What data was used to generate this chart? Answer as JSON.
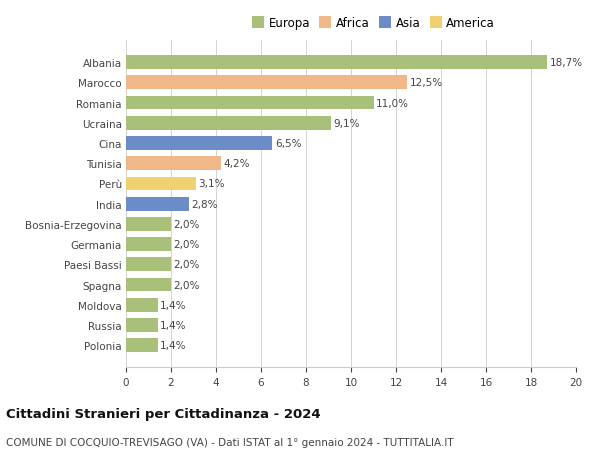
{
  "countries": [
    "Albania",
    "Marocco",
    "Romania",
    "Ucraina",
    "Cina",
    "Tunisia",
    "Perù",
    "India",
    "Bosnia-Erzegovina",
    "Germania",
    "Paesi Bassi",
    "Spagna",
    "Moldova",
    "Russia",
    "Polonia"
  ],
  "values": [
    18.7,
    12.5,
    11.0,
    9.1,
    6.5,
    4.2,
    3.1,
    2.8,
    2.0,
    2.0,
    2.0,
    2.0,
    1.4,
    1.4,
    1.4
  ],
  "labels": [
    "18,7%",
    "12,5%",
    "11,0%",
    "9,1%",
    "6,5%",
    "4,2%",
    "3,1%",
    "2,8%",
    "2,0%",
    "2,0%",
    "2,0%",
    "2,0%",
    "1,4%",
    "1,4%",
    "1,4%"
  ],
  "continents": [
    "Europa",
    "Africa",
    "Europa",
    "Europa",
    "Asia",
    "Africa",
    "America",
    "Asia",
    "Europa",
    "Europa",
    "Europa",
    "Europa",
    "Europa",
    "Europa",
    "Europa"
  ],
  "colors": {
    "Europa": "#a8c07a",
    "Africa": "#f0b889",
    "Asia": "#6b8cc7",
    "America": "#f0d070"
  },
  "legend_order": [
    "Europa",
    "Africa",
    "Asia",
    "America"
  ],
  "title": "Cittadini Stranieri per Cittadinanza - 2024",
  "subtitle": "COMUNE DI COCQUIO-TREVISAGO (VA) - Dati ISTAT al 1° gennaio 2024 - TUTTITALIA.IT",
  "xlim": [
    0,
    20
  ],
  "xticks": [
    0,
    2,
    4,
    6,
    8,
    10,
    12,
    14,
    16,
    18,
    20
  ],
  "background_color": "#ffffff",
  "grid_color": "#cccccc",
  "bar_height": 0.68,
  "title_fontsize": 9.5,
  "subtitle_fontsize": 7.5,
  "label_fontsize": 7.5,
  "tick_fontsize": 7.5,
  "legend_fontsize": 8.5
}
